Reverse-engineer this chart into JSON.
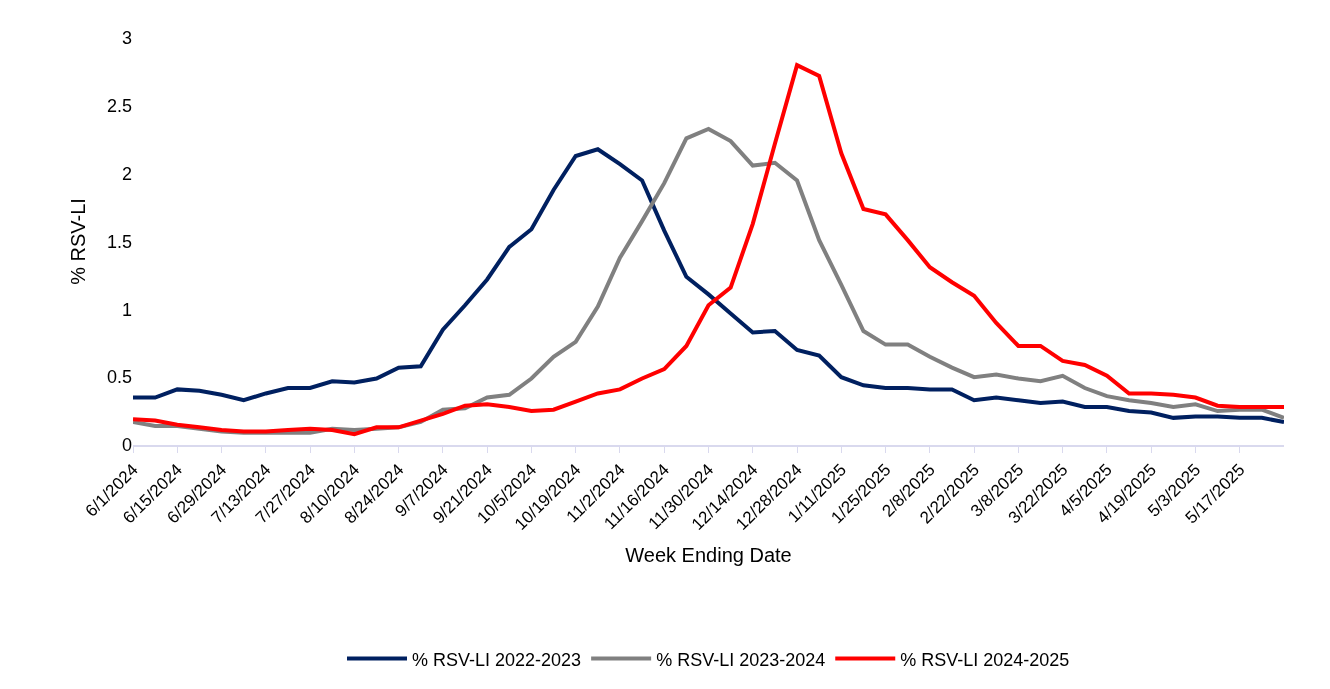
{
  "chart_data": {
    "type": "line",
    "xlabel": "Week Ending Date",
    "ylabel": "% RSV-LI",
    "categories": [
      "6/1/2024",
      null,
      "6/15/2024",
      null,
      "6/29/2024",
      null,
      "7/13/2024",
      null,
      "7/27/2024",
      null,
      "8/10/2024",
      null,
      "8/24/2024",
      null,
      "9/7/2024",
      null,
      "9/21/2024",
      null,
      "10/5/2024",
      null,
      "10/19/2024",
      null,
      "11/2/2024",
      null,
      "11/16/2024",
      null,
      "11/30/2024",
      null,
      "12/14/2024",
      null,
      "12/28/2024",
      null,
      "1/11/2025",
      null,
      "1/25/2025",
      null,
      "2/8/2025",
      null,
      "2/22/2025",
      null,
      "3/8/2025",
      null,
      "3/22/2025",
      null,
      "4/5/2025",
      null,
      "4/19/2025",
      null,
      "5/3/2025",
      null,
      "5/17/2025",
      null,
      null
    ],
    "series": [
      {
        "name": "% RSV-LI 2022-2023",
        "color": "#002060",
        "values": [
          0.35,
          0.35,
          0.41,
          0.4,
          0.37,
          0.33,
          0.38,
          0.42,
          0.42,
          0.47,
          0.46,
          0.49,
          0.57,
          0.58,
          0.85,
          1.03,
          1.22,
          1.46,
          1.59,
          1.88,
          2.13,
          2.18,
          2.07,
          1.95,
          1.58,
          1.24,
          1.11,
          0.97,
          0.83,
          0.84,
          0.7,
          0.66,
          0.5,
          0.44,
          0.42,
          0.42,
          0.41,
          0.41,
          0.33,
          0.35,
          0.33,
          0.31,
          0.32,
          0.28,
          0.28,
          0.25,
          0.24,
          0.2,
          0.21,
          0.21,
          0.2,
          0.2,
          0.17
        ]
      },
      {
        "name": "% RSV-LI 2023-2024",
        "color": "#808080",
        "values": [
          0.17,
          0.14,
          0.14,
          0.12,
          0.1,
          0.09,
          0.09,
          0.09,
          0.09,
          0.12,
          0.11,
          0.12,
          0.13,
          0.17,
          0.26,
          0.27,
          0.35,
          0.37,
          0.49,
          0.65,
          0.76,
          1.02,
          1.38,
          1.65,
          1.93,
          2.26,
          2.33,
          2.24,
          2.06,
          2.08,
          1.95,
          1.51,
          1.18,
          0.84,
          0.74,
          0.74,
          0.65,
          0.57,
          0.5,
          0.52,
          0.49,
          0.47,
          0.51,
          0.42,
          0.36,
          0.33,
          0.31,
          0.28,
          0.3,
          0.25,
          0.26,
          0.26,
          0.2
        ]
      },
      {
        "name": "% RSV-LI 2024-2025",
        "color": "#ff0000",
        "values": [
          0.19,
          0.18,
          0.15,
          0.13,
          0.11,
          0.1,
          0.1,
          0.11,
          0.12,
          0.11,
          0.08,
          0.13,
          0.13,
          0.18,
          0.23,
          0.29,
          0.3,
          0.28,
          0.25,
          0.26,
          0.32,
          0.38,
          0.41,
          0.49,
          0.56,
          0.73,
          1.03,
          1.16,
          1.63,
          2.22,
          2.8,
          2.72,
          2.15,
          1.74,
          1.7,
          1.51,
          1.31,
          1.2,
          1.1,
          0.9,
          0.73,
          0.73,
          0.62,
          0.59,
          0.51,
          0.38,
          0.38,
          0.37,
          0.35,
          0.29,
          0.28,
          0.28,
          0.28
        ]
      }
    ],
    "ylim": [
      0,
      3
    ],
    "yticks": [
      0,
      0.5,
      1,
      1.5,
      2,
      2.5,
      3
    ],
    "legend": "bottom",
    "marker": "none",
    "line_style": "solid"
  }
}
